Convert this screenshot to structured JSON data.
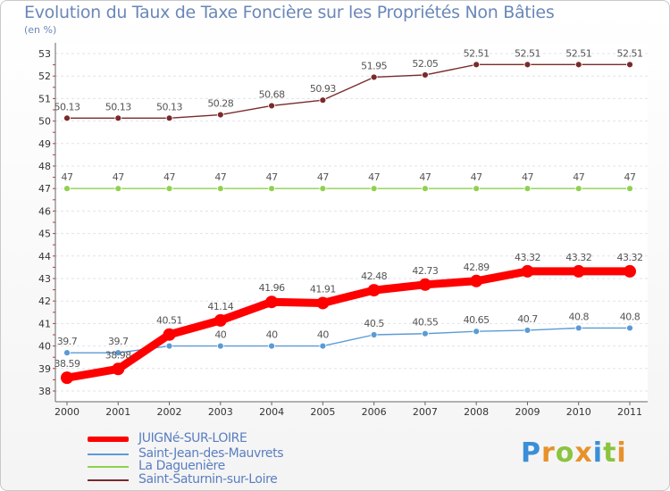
{
  "chart_data": {
    "type": "line",
    "title": "Evolution du Taux de Taxe Foncière sur les Propriétés Non Bâties",
    "subtitle": "(en %)",
    "xlabel": "",
    "ylabel": "",
    "x": [
      "2000",
      "2001",
      "2002",
      "2003",
      "2004",
      "2005",
      "2006",
      "2007",
      "2008",
      "2009",
      "2010",
      "2011"
    ],
    "ylim": [
      38,
      53
    ],
    "yticks": [
      "38",
      "39",
      "40",
      "41",
      "42",
      "43",
      "44",
      "45",
      "46",
      "47",
      "48",
      "49",
      "50",
      "51",
      "52",
      "53"
    ],
    "series": [
      {
        "name": "Saint-Saturnin-sur-Loire",
        "color": "#7a2a2a",
        "values": [
          50.13,
          50.13,
          50.13,
          50.28,
          50.68,
          50.93,
          51.95,
          52.05,
          52.51,
          52.51,
          52.51,
          52.51
        ],
        "labels": [
          "50.13",
          "50.13",
          "50.13",
          "50.28",
          "50.68",
          "50.93",
          "51.95",
          "52.05",
          "52.51",
          "52.51",
          "52.51",
          "52.51"
        ]
      },
      {
        "name": "La Daguenière",
        "color": "#8fd14f",
        "values": [
          47,
          47,
          47,
          47,
          47,
          47,
          47,
          47,
          47,
          47,
          47,
          47
        ],
        "labels": [
          "47",
          "47",
          "47",
          "47",
          "47",
          "47",
          "47",
          "47",
          "47",
          "47",
          "47",
          "47"
        ]
      },
      {
        "name": "Saint-Jean-des-Mauvrets",
        "color": "#5b9bd5",
        "values": [
          39.7,
          39.7,
          40,
          40,
          40,
          40,
          40.5,
          40.55,
          40.65,
          40.7,
          40.8,
          40.8
        ],
        "labels": [
          "39.7",
          "39.7",
          "40",
          "40",
          "40",
          "40",
          "40.5",
          "40.55",
          "40.65",
          "40.7",
          "40.8",
          "40.8"
        ]
      },
      {
        "name": "JUIGNé-SUR-LOIRE",
        "color": "#ff0000",
        "values": [
          38.59,
          38.98,
          40.51,
          41.14,
          41.96,
          41.91,
          42.48,
          42.73,
          42.89,
          43.32,
          43.32,
          43.32
        ],
        "labels": [
          "38.59",
          "38.98",
          "40.51",
          "41.14",
          "41.96",
          "41.91",
          "42.48",
          "42.73",
          "42.89",
          "43.32",
          "43.32",
          "43.32"
        ]
      }
    ],
    "legend": [
      "JUIGNé-SUR-LOIRE",
      "Saint-Jean-des-Mauvrets",
      "La Daguenière",
      "Saint-Saturnin-sur-Loire"
    ],
    "legend_position": "bottom-left"
  },
  "logo": {
    "text": "Proxiti"
  }
}
